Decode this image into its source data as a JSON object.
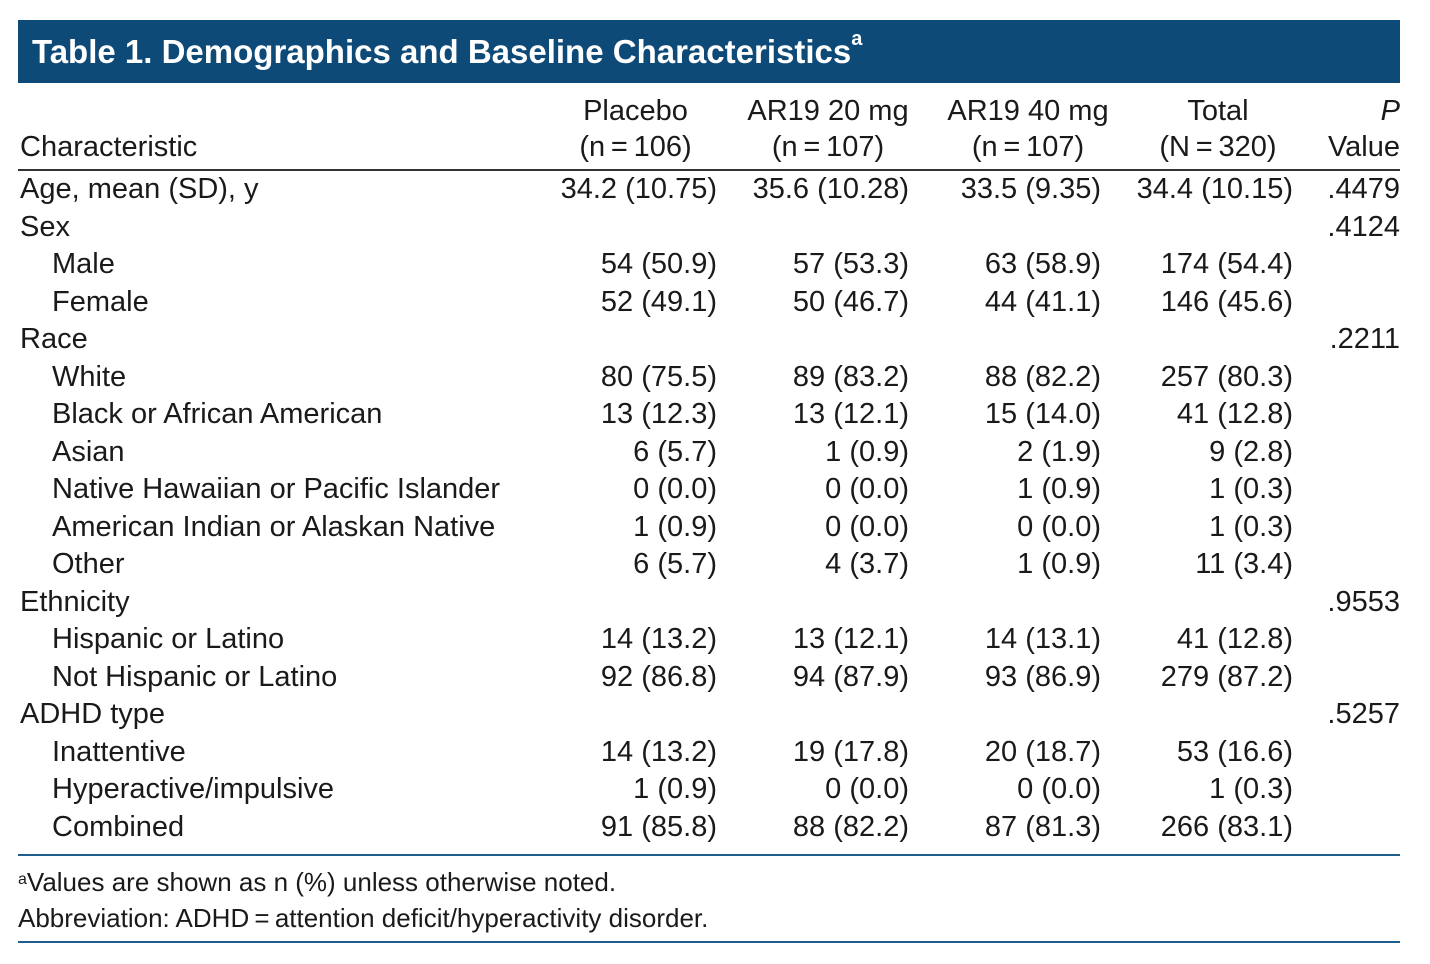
{
  "title": {
    "text": "Table 1. Demographics and Baseline Characteristics",
    "superscript": "a"
  },
  "header": {
    "characteristic": "Characteristic",
    "cols": [
      {
        "line1": "Placebo",
        "line2": "(n = 106)"
      },
      {
        "line1": "AR19 20 mg",
        "line2": "(n = 107)"
      },
      {
        "line1": "AR19 40 mg",
        "line2": "(n = 107)"
      },
      {
        "line1": "Total",
        "line2": "(N = 320)"
      }
    ],
    "pvalue": {
      "line1": "P",
      "line2": "Value"
    }
  },
  "rows": [
    {
      "label": "Age, mean (SD), y",
      "indent": false,
      "v": [
        "34.2 (10.75)",
        "35.6 (10.28)",
        "33.5 (9.35)",
        "34.4 (10.15)"
      ],
      "p": ".4479"
    },
    {
      "label": "Sex",
      "indent": false,
      "v": [
        "",
        "",
        "",
        ""
      ],
      "p": ".4124"
    },
    {
      "label": "Male",
      "indent": true,
      "v": [
        "54 (50.9)",
        "57 (53.3)",
        "63 (58.9)",
        "174 (54.4)"
      ],
      "p": ""
    },
    {
      "label": "Female",
      "indent": true,
      "v": [
        "52 (49.1)",
        "50 (46.7)",
        "44 (41.1)",
        "146 (45.6)"
      ],
      "p": ""
    },
    {
      "label": "Race",
      "indent": false,
      "v": [
        "",
        "",
        "",
        ""
      ],
      "p": ".2211"
    },
    {
      "label": "White",
      "indent": true,
      "v": [
        "80 (75.5)",
        "89 (83.2)",
        "88 (82.2)",
        "257 (80.3)"
      ],
      "p": ""
    },
    {
      "label": "Black or African American",
      "indent": true,
      "v": [
        "13 (12.3)",
        "13 (12.1)",
        "15 (14.0)",
        "41 (12.8)"
      ],
      "p": ""
    },
    {
      "label": "Asian",
      "indent": true,
      "v": [
        "6 (5.7)",
        "1 (0.9)",
        "2 (1.9)",
        "9 (2.8)"
      ],
      "p": ""
    },
    {
      "label": "Native Hawaiian or Pacific Islander",
      "indent": true,
      "v": [
        "0 (0.0)",
        "0 (0.0)",
        "1 (0.9)",
        "1 (0.3)"
      ],
      "p": ""
    },
    {
      "label": "American Indian or Alaskan Native",
      "indent": true,
      "v": [
        "1 (0.9)",
        "0 (0.0)",
        "0 (0.0)",
        "1 (0.3)"
      ],
      "p": ""
    },
    {
      "label": "Other",
      "indent": true,
      "v": [
        "6 (5.7)",
        "4 (3.7)",
        "1 (0.9)",
        "11 (3.4)"
      ],
      "p": ""
    },
    {
      "label": "Ethnicity",
      "indent": false,
      "v": [
        "",
        "",
        "",
        ""
      ],
      "p": ".9553"
    },
    {
      "label": "Hispanic or Latino",
      "indent": true,
      "v": [
        "14 (13.2)",
        "13 (12.1)",
        "14 (13.1)",
        "41 (12.8)"
      ],
      "p": ""
    },
    {
      "label": "Not Hispanic or Latino",
      "indent": true,
      "v": [
        "92 (86.8)",
        "94 (87.9)",
        "93 (86.9)",
        "279 (87.2)"
      ],
      "p": ""
    },
    {
      "label": "ADHD type",
      "indent": false,
      "v": [
        "",
        "",
        "",
        ""
      ],
      "p": ".5257"
    },
    {
      "label": "Inattentive",
      "indent": true,
      "v": [
        "14 (13.2)",
        "19 (17.8)",
        "20 (18.7)",
        "53 (16.6)"
      ],
      "p": ""
    },
    {
      "label": "Hyperactive/impulsive",
      "indent": true,
      "v": [
        "1 (0.9)",
        "0 (0.0)",
        "0 (0.0)",
        "1 (0.3)"
      ],
      "p": ""
    },
    {
      "label": "Combined",
      "indent": true,
      "v": [
        "91 (85.8)",
        "88 (82.2)",
        "87 (81.3)",
        "266 (83.1)"
      ],
      "p": ""
    }
  ],
  "footnotes": {
    "a_mark": "a",
    "a_text": "Values are shown as n (%) unless otherwise noted.",
    "abbrev": "Abbreviation: ADHD = attention deficit/hyperactivity disorder."
  },
  "colors": {
    "title_bg": "#0e4a78",
    "rule": "#1f5f8e"
  }
}
